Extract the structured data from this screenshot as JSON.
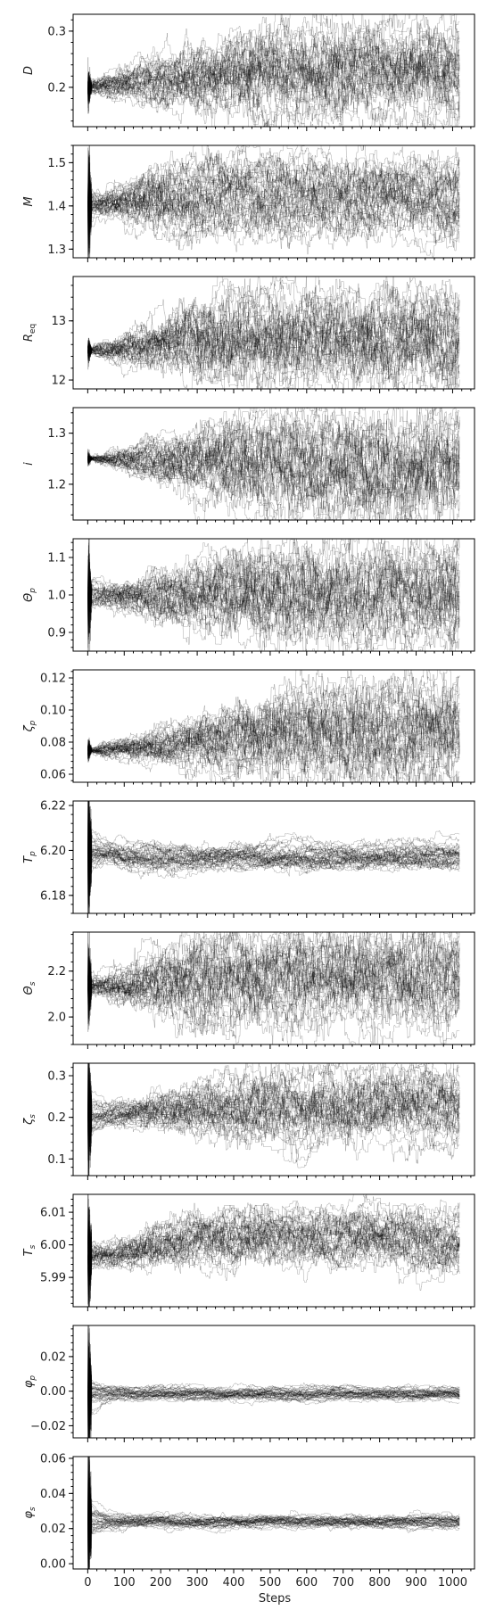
{
  "chart_data": {
    "type": "line",
    "xlabel": "Steps",
    "xlim": [
      -40,
      1060
    ],
    "x_ticks": [
      0,
      100,
      200,
      300,
      400,
      500,
      600,
      700,
      800,
      900,
      1000
    ],
    "x_tick_labels": [
      "0",
      "100",
      "200",
      "300",
      "400",
      "500",
      "600",
      "700",
      "800",
      "900",
      "1000"
    ],
    "n_steps": 1020,
    "n_walkers": 40,
    "line_color": "#000000",
    "grid": false,
    "legend": "none",
    "panels": [
      {
        "ylabel_base": "D",
        "ylabel_sub": "",
        "ylim": [
          0.13,
          0.33
        ],
        "yticks": [
          0.2,
          0.3
        ],
        "ytick_labels": [
          "0.2",
          "0.3"
        ],
        "start": 0.2,
        "init_spread": 0.008,
        "final_mean": 0.225,
        "final_spread": 0.035,
        "settle_step": 150,
        "spike": 0.02
      },
      {
        "ylabel_base": "M",
        "ylabel_sub": "",
        "ylim": [
          1.28,
          1.54
        ],
        "yticks": [
          1.3,
          1.4,
          1.5
        ],
        "ytick_labels": [
          "1.3",
          "1.4",
          "1.5"
        ],
        "start": 1.4,
        "init_spread": 0.01,
        "final_mean": 1.415,
        "final_spread": 0.035,
        "settle_step": 60,
        "spike": 0.08
      },
      {
        "ylabel_base": "R",
        "ylabel_sub": "eq",
        "ylim": [
          11.85,
          13.75
        ],
        "yticks": [
          12,
          13
        ],
        "ytick_labels": [
          "12",
          "13"
        ],
        "start": 12.5,
        "init_spread": 0.05,
        "final_mean": 12.7,
        "final_spread": 0.35,
        "settle_step": 120,
        "spike": 0.12
      },
      {
        "ylabel_base": "i",
        "ylabel_sub": "",
        "ylim": [
          1.13,
          1.35
        ],
        "yticks": [
          1.2,
          1.3
        ],
        "ytick_labels": [
          "1.2",
          "1.3"
        ],
        "start": 1.25,
        "init_spread": 0.004,
        "final_mean": 1.245,
        "final_spread": 0.045,
        "settle_step": 160,
        "spike": 0.008
      },
      {
        "ylabel_base": "Θ",
        "ylabel_sub": "p",
        "ylim": [
          0.85,
          1.15
        ],
        "yticks": [
          0.9,
          1.0,
          1.1
        ],
        "ytick_labels": [
          "0.9",
          "1.0",
          "1.1"
        ],
        "start": 1.0,
        "init_spread": 0.01,
        "final_mean": 1.0,
        "final_spread": 0.055,
        "settle_step": 140,
        "spike": 0.08
      },
      {
        "ylabel_base": "ζ",
        "ylabel_sub": "p",
        "ylim": [
          0.055,
          0.125
        ],
        "yticks": [
          0.06,
          0.08,
          0.1,
          0.12
        ],
        "ytick_labels": [
          "0.06",
          "0.08",
          "0.10",
          "0.12"
        ],
        "start": 0.075,
        "init_spread": 0.002,
        "final_mean": 0.086,
        "final_spread": 0.013,
        "settle_step": 200,
        "spike": 0.004
      },
      {
        "ylabel_base": "T",
        "ylabel_sub": "p",
        "ylim": [
          6.172,
          6.222
        ],
        "yticks": [
          6.18,
          6.2,
          6.22
        ],
        "ytick_labels": [
          "6.18",
          "6.20",
          "6.22"
        ],
        "start": 6.199,
        "init_spread": 0.0015,
        "final_mean": 6.1975,
        "final_spread": 0.0022,
        "settle_step": 30,
        "spike": 0.02
      },
      {
        "ylabel_base": "Θ",
        "ylabel_sub": "s",
        "ylim": [
          1.88,
          2.37
        ],
        "yticks": [
          2.0,
          2.2
        ],
        "ytick_labels": [
          "2.0",
          "2.2"
        ],
        "start": 2.14,
        "init_spread": 0.02,
        "final_mean": 2.16,
        "final_spread": 0.085,
        "settle_step": 100,
        "spike": 0.12
      },
      {
        "ylabel_base": "ζ",
        "ylabel_sub": "s",
        "ylim": [
          0.06,
          0.33
        ],
        "yticks": [
          0.1,
          0.2,
          0.3
        ],
        "ytick_labels": [
          "0.1",
          "0.2",
          "0.3"
        ],
        "start": 0.205,
        "init_spread": 0.008,
        "final_mean": 0.225,
        "final_spread": 0.035,
        "settle_step": 150,
        "spike": 0.1
      },
      {
        "ylabel_base": "T",
        "ylabel_sub": "s",
        "ylim": [
          5.981,
          6.0155
        ],
        "yticks": [
          5.99,
          6.0,
          6.01
        ],
        "ytick_labels": [
          "5.99",
          "6.00",
          "6.01"
        ],
        "start": 5.997,
        "init_spread": 0.0015,
        "final_mean": 6.002,
        "final_spread": 0.0035,
        "settle_step": 90,
        "spike": 0.012
      },
      {
        "ylabel_base": "φ",
        "ylabel_sub": "p",
        "ylim": [
          -0.027,
          0.038
        ],
        "yticks": [
          -0.02,
          0.0,
          0.02
        ],
        "ytick_labels": [
          "−0.02",
          "0.00",
          "0.02"
        ],
        "start": -0.001,
        "init_spread": 0.0015,
        "final_mean": -0.0015,
        "final_spread": 0.0015,
        "settle_step": 40,
        "spike": 0.025
      },
      {
        "ylabel_base": "φ",
        "ylabel_sub": "s",
        "ylim": [
          -0.003,
          0.061
        ],
        "yticks": [
          0.0,
          0.02,
          0.04,
          0.06
        ],
        "ytick_labels": [
          "0.00",
          "0.02",
          "0.04",
          "0.06"
        ],
        "start": 0.024,
        "init_spread": 0.0015,
        "final_mean": 0.024,
        "final_spread": 0.0015,
        "settle_step": 40,
        "spike": 0.025
      }
    ]
  }
}
